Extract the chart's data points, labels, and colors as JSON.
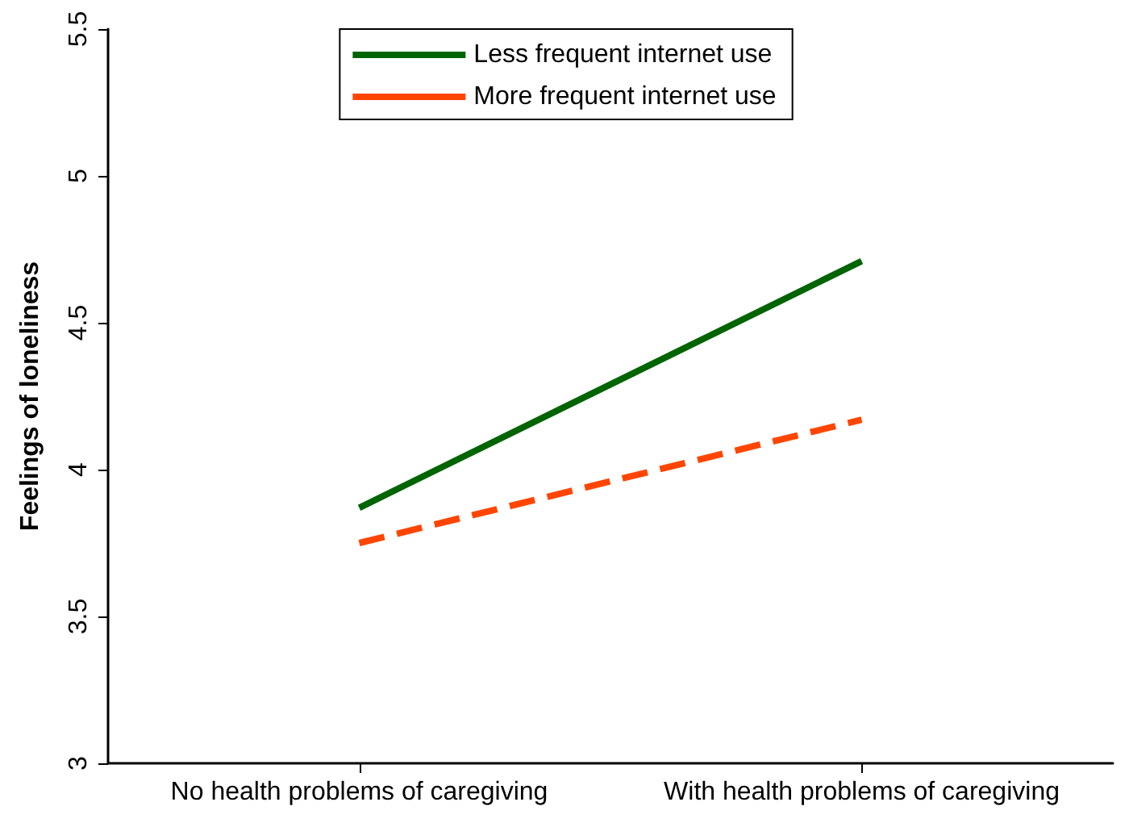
{
  "chart_data": {
    "type": "line",
    "ylabel": "Feelings of loneliness",
    "categories": [
      "No health problems of caregiving",
      "With health problems of caregiving"
    ],
    "series": [
      {
        "name": "Less frequent internet use",
        "color": "#006400",
        "values": [
          3.87,
          4.71
        ],
        "line_style": "solid"
      },
      {
        "name": "More frequent internet use",
        "color": "#ff4500",
        "values": [
          3.75,
          4.17
        ],
        "line_style": "dashed"
      }
    ],
    "ylim": [
      3,
      5.5
    ],
    "yticks": [
      3,
      3.5,
      4,
      4.5,
      5,
      5.5
    ],
    "grid": false,
    "legend": "top",
    "marker": "none"
  }
}
